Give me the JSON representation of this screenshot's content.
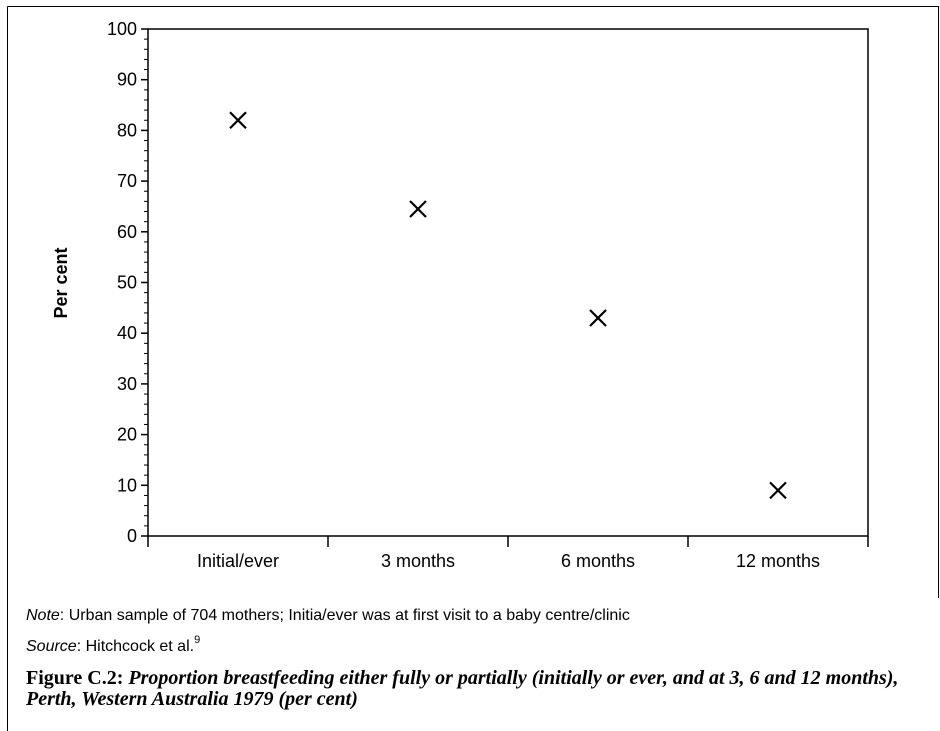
{
  "chart_data": {
    "type": "scatter",
    "categories": [
      "Initial/ever",
      "3 months",
      "6 months",
      "12 months"
    ],
    "values": [
      82,
      64.5,
      43,
      9
    ],
    "marker": "x",
    "ylabel": "Per cent",
    "xlabel": "",
    "ylim": [
      0,
      100
    ],
    "yticks": [
      0,
      10,
      20,
      30,
      40,
      50,
      60,
      70,
      80,
      90,
      100
    ],
    "grid": false
  },
  "note": {
    "lead": "Note",
    "text": ": Urban sample of 704 mothers; Initia/ever was at first visit to a baby centre/clinic"
  },
  "source": {
    "lead": "Source",
    "text": ": Hitchcock et al.",
    "superscript": "9"
  },
  "caption": {
    "label": "Figure C.2: ",
    "text": "Proportion breastfeeding either fully or partially (initially or ever, and at 3, 6 and 12 months), Perth, Western Australia 1979 (per cent)"
  }
}
